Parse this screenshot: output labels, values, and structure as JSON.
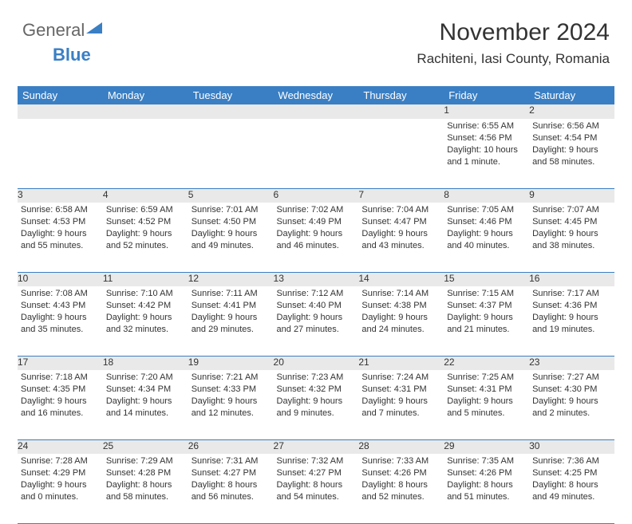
{
  "brand": {
    "part1": "General",
    "part2": "Blue"
  },
  "title": "November 2024",
  "location": "Rachiteni, Iasi County, Romania",
  "colors": {
    "header_bg": "#3a7fc4",
    "header_fg": "#ffffff",
    "daynum_bg": "#e9e9e9",
    "rule": "#3a7fc4",
    "text": "#333333",
    "background": "#ffffff"
  },
  "typography": {
    "title_fontsize_pt": 23,
    "location_fontsize_pt": 13,
    "dayhead_fontsize_pt": 10,
    "cell_fontsize_pt": 8
  },
  "days_of_week": [
    "Sunday",
    "Monday",
    "Tuesday",
    "Wednesday",
    "Thursday",
    "Friday",
    "Saturday"
  ],
  "weeks": [
    [
      null,
      null,
      null,
      null,
      null,
      {
        "n": "1",
        "sunrise": "Sunrise: 6:55 AM",
        "sunset": "Sunset: 4:56 PM",
        "daylight": "Daylight: 10 hours and 1 minute."
      },
      {
        "n": "2",
        "sunrise": "Sunrise: 6:56 AM",
        "sunset": "Sunset: 4:54 PM",
        "daylight": "Daylight: 9 hours and 58 minutes."
      }
    ],
    [
      {
        "n": "3",
        "sunrise": "Sunrise: 6:58 AM",
        "sunset": "Sunset: 4:53 PM",
        "daylight": "Daylight: 9 hours and 55 minutes."
      },
      {
        "n": "4",
        "sunrise": "Sunrise: 6:59 AM",
        "sunset": "Sunset: 4:52 PM",
        "daylight": "Daylight: 9 hours and 52 minutes."
      },
      {
        "n": "5",
        "sunrise": "Sunrise: 7:01 AM",
        "sunset": "Sunset: 4:50 PM",
        "daylight": "Daylight: 9 hours and 49 minutes."
      },
      {
        "n": "6",
        "sunrise": "Sunrise: 7:02 AM",
        "sunset": "Sunset: 4:49 PM",
        "daylight": "Daylight: 9 hours and 46 minutes."
      },
      {
        "n": "7",
        "sunrise": "Sunrise: 7:04 AM",
        "sunset": "Sunset: 4:47 PM",
        "daylight": "Daylight: 9 hours and 43 minutes."
      },
      {
        "n": "8",
        "sunrise": "Sunrise: 7:05 AM",
        "sunset": "Sunset: 4:46 PM",
        "daylight": "Daylight: 9 hours and 40 minutes."
      },
      {
        "n": "9",
        "sunrise": "Sunrise: 7:07 AM",
        "sunset": "Sunset: 4:45 PM",
        "daylight": "Daylight: 9 hours and 38 minutes."
      }
    ],
    [
      {
        "n": "10",
        "sunrise": "Sunrise: 7:08 AM",
        "sunset": "Sunset: 4:43 PM",
        "daylight": "Daylight: 9 hours and 35 minutes."
      },
      {
        "n": "11",
        "sunrise": "Sunrise: 7:10 AM",
        "sunset": "Sunset: 4:42 PM",
        "daylight": "Daylight: 9 hours and 32 minutes."
      },
      {
        "n": "12",
        "sunrise": "Sunrise: 7:11 AM",
        "sunset": "Sunset: 4:41 PM",
        "daylight": "Daylight: 9 hours and 29 minutes."
      },
      {
        "n": "13",
        "sunrise": "Sunrise: 7:12 AM",
        "sunset": "Sunset: 4:40 PM",
        "daylight": "Daylight: 9 hours and 27 minutes."
      },
      {
        "n": "14",
        "sunrise": "Sunrise: 7:14 AM",
        "sunset": "Sunset: 4:38 PM",
        "daylight": "Daylight: 9 hours and 24 minutes."
      },
      {
        "n": "15",
        "sunrise": "Sunrise: 7:15 AM",
        "sunset": "Sunset: 4:37 PM",
        "daylight": "Daylight: 9 hours and 21 minutes."
      },
      {
        "n": "16",
        "sunrise": "Sunrise: 7:17 AM",
        "sunset": "Sunset: 4:36 PM",
        "daylight": "Daylight: 9 hours and 19 minutes."
      }
    ],
    [
      {
        "n": "17",
        "sunrise": "Sunrise: 7:18 AM",
        "sunset": "Sunset: 4:35 PM",
        "daylight": "Daylight: 9 hours and 16 minutes."
      },
      {
        "n": "18",
        "sunrise": "Sunrise: 7:20 AM",
        "sunset": "Sunset: 4:34 PM",
        "daylight": "Daylight: 9 hours and 14 minutes."
      },
      {
        "n": "19",
        "sunrise": "Sunrise: 7:21 AM",
        "sunset": "Sunset: 4:33 PM",
        "daylight": "Daylight: 9 hours and 12 minutes."
      },
      {
        "n": "20",
        "sunrise": "Sunrise: 7:23 AM",
        "sunset": "Sunset: 4:32 PM",
        "daylight": "Daylight: 9 hours and 9 minutes."
      },
      {
        "n": "21",
        "sunrise": "Sunrise: 7:24 AM",
        "sunset": "Sunset: 4:31 PM",
        "daylight": "Daylight: 9 hours and 7 minutes."
      },
      {
        "n": "22",
        "sunrise": "Sunrise: 7:25 AM",
        "sunset": "Sunset: 4:31 PM",
        "daylight": "Daylight: 9 hours and 5 minutes."
      },
      {
        "n": "23",
        "sunrise": "Sunrise: 7:27 AM",
        "sunset": "Sunset: 4:30 PM",
        "daylight": "Daylight: 9 hours and 2 minutes."
      }
    ],
    [
      {
        "n": "24",
        "sunrise": "Sunrise: 7:28 AM",
        "sunset": "Sunset: 4:29 PM",
        "daylight": "Daylight: 9 hours and 0 minutes."
      },
      {
        "n": "25",
        "sunrise": "Sunrise: 7:29 AM",
        "sunset": "Sunset: 4:28 PM",
        "daylight": "Daylight: 8 hours and 58 minutes."
      },
      {
        "n": "26",
        "sunrise": "Sunrise: 7:31 AM",
        "sunset": "Sunset: 4:27 PM",
        "daylight": "Daylight: 8 hours and 56 minutes."
      },
      {
        "n": "27",
        "sunrise": "Sunrise: 7:32 AM",
        "sunset": "Sunset: 4:27 PM",
        "daylight": "Daylight: 8 hours and 54 minutes."
      },
      {
        "n": "28",
        "sunrise": "Sunrise: 7:33 AM",
        "sunset": "Sunset: 4:26 PM",
        "daylight": "Daylight: 8 hours and 52 minutes."
      },
      {
        "n": "29",
        "sunrise": "Sunrise: 7:35 AM",
        "sunset": "Sunset: 4:26 PM",
        "daylight": "Daylight: 8 hours and 51 minutes."
      },
      {
        "n": "30",
        "sunrise": "Sunrise: 7:36 AM",
        "sunset": "Sunset: 4:25 PM",
        "daylight": "Daylight: 8 hours and 49 minutes."
      }
    ]
  ]
}
